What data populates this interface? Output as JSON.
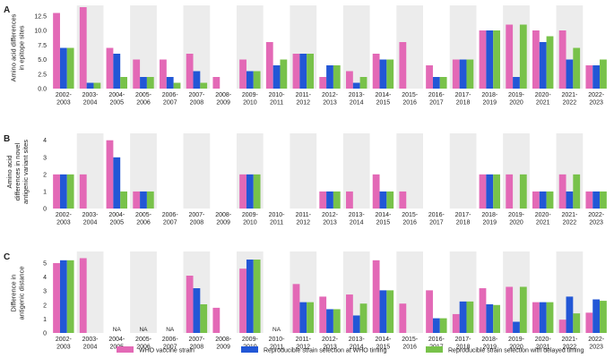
{
  "colors": {
    "who": "#e369b6",
    "whoTiming": "#2257d6",
    "delayed": "#78c24a",
    "band": "#ececec"
  },
  "seasons": [
    "2002-\n2003",
    "2003-\n2004",
    "2004-\n2005",
    "2005-\n2006",
    "2006-\n2007",
    "2007-\n2008",
    "2008-\n2009",
    "2009-\n2010",
    "2010-\n2011",
    "2011-\n2012",
    "2012-\n2013",
    "2013-\n2014",
    "2014-\n2015",
    "2015-\n2016",
    "2016-\n2017",
    "2017-\n2018",
    "2018-\n2019",
    "2019-\n2020",
    "2020-\n2021",
    "2021-\n2022",
    "2022-\n2023"
  ],
  "legend": {
    "who": "WHO vaccine strain",
    "whoTiming": "Reproducible strain selection at WHO timing",
    "delayed": "Reproducible strain selection with delayed timing"
  },
  "chart_data": [
    {
      "type": "bar",
      "panel": "A",
      "ylabel": "Amino acid differences\nin epitope sites",
      "ylim": [
        0,
        14
      ],
      "yticks": [
        0,
        2.5,
        5,
        7.5,
        10,
        12.5
      ],
      "ytickLabels": [
        "0.0",
        "2.5",
        "5.0",
        "7.5",
        "10.0",
        "12.5"
      ],
      "series": [
        {
          "name": "WHO vaccine strain",
          "values": [
            13,
            14,
            7,
            5,
            5,
            6,
            2,
            5,
            8,
            6,
            2,
            3,
            6,
            8,
            4,
            5,
            10,
            11,
            10,
            10,
            4
          ]
        },
        {
          "name": "Reproducible strain selection at WHO timing",
          "values": [
            7,
            1,
            6,
            2,
            2,
            3,
            0,
            3,
            4,
            6,
            4,
            1,
            5,
            0,
            2,
            5,
            10,
            2,
            8,
            5,
            4
          ]
        },
        {
          "name": "Reproducible strain selection with delayed timing",
          "values": [
            7,
            1,
            2,
            2,
            1,
            1,
            0,
            3,
            5,
            6,
            4,
            2,
            5,
            0,
            2,
            5,
            10,
            11,
            9,
            7,
            5
          ]
        }
      ],
      "na": []
    },
    {
      "type": "bar",
      "panel": "B",
      "ylabel": "Amino acid\ndifferences in novel\nantigenic variant sites",
      "ylim": [
        0,
        4.3
      ],
      "yticks": [
        0,
        1,
        2,
        3,
        4
      ],
      "ytickLabels": [
        "0",
        "1",
        "2",
        "3",
        "4"
      ],
      "series": [
        {
          "name": "WHO vaccine strain",
          "values": [
            2,
            2,
            4,
            1,
            0,
            0,
            0,
            2,
            0,
            0,
            1,
            1,
            2,
            1,
            0,
            0,
            2,
            2,
            1,
            2,
            1
          ]
        },
        {
          "name": "Reproducible strain selection at WHO timing",
          "values": [
            2,
            0,
            3,
            1,
            0,
            0,
            0,
            2,
            0,
            0,
            1,
            0,
            1,
            0,
            0,
            0,
            2,
            0,
            1,
            1,
            1
          ]
        },
        {
          "name": "Reproducible strain selection with delayed timing",
          "values": [
            2,
            0,
            1,
            1,
            0,
            0,
            0,
            2,
            0,
            0,
            1,
            0,
            1,
            0,
            0,
            0,
            2,
            2,
            1,
            2,
            1
          ]
        }
      ],
      "na": []
    },
    {
      "type": "bar",
      "panel": "C",
      "ylabel": "Difference in\nantigenic distance",
      "ylim": [
        0,
        5.7
      ],
      "yticks": [
        0,
        1,
        2,
        3,
        4,
        5
      ],
      "ytickLabels": [
        "0",
        "1",
        "2",
        "3",
        "4",
        "5"
      ],
      "series": [
        {
          "name": "WHO vaccine strain",
          "values": [
            5.0,
            5.35,
            null,
            null,
            null,
            4.1,
            1.8,
            4.6,
            null,
            3.5,
            2.6,
            2.75,
            5.2,
            2.1,
            3.05,
            1.35,
            3.2,
            3.3,
            2.2,
            0.95,
            1.45
          ]
        },
        {
          "name": "Reproducible strain selection at WHO timing",
          "values": [
            5.2,
            0,
            null,
            null,
            null,
            3.2,
            0,
            5.25,
            null,
            2.2,
            1.7,
            1.25,
            3.05,
            0,
            1.05,
            2.25,
            2.05,
            0.8,
            2.2,
            2.6,
            2.4
          ]
        },
        {
          "name": "Reproducible strain selection with delayed timing",
          "values": [
            5.2,
            0,
            null,
            null,
            null,
            2.05,
            0,
            5.25,
            null,
            2.2,
            1.7,
            2.1,
            3.05,
            0,
            1.05,
            2.25,
            2.0,
            3.3,
            2.2,
            1.4,
            2.3
          ]
        }
      ],
      "na": [
        "NA",
        "NA",
        "NA",
        "NA"
      ],
      "naIndex": [
        2,
        3,
        4,
        8
      ]
    }
  ]
}
